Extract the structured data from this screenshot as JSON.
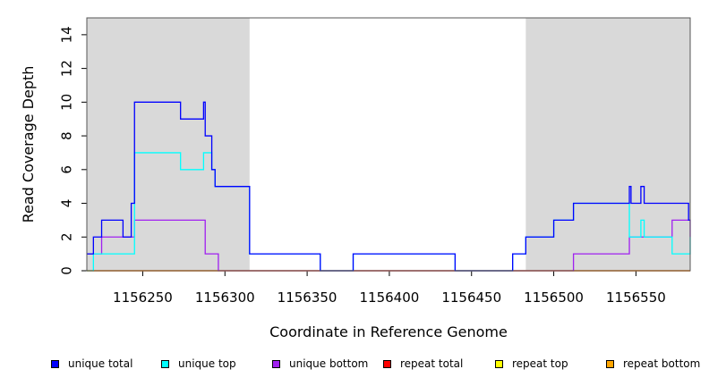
{
  "chart_data": {
    "type": "line",
    "step": true,
    "xlabel": "Coordinate in Reference Genome",
    "ylabel": "Read Coverage Depth",
    "xlim": [
      1156216,
      1156583
    ],
    "ylim": [
      0,
      15
    ],
    "x_ticks": [
      1156250,
      1156300,
      1156350,
      1156400,
      1156450,
      1156500,
      1156550
    ],
    "y_ticks": [
      0,
      2,
      4,
      6,
      8,
      10,
      12,
      14
    ],
    "shaded_regions": [
      [
        1156216,
        1156315
      ],
      [
        1156483,
        1156583
      ]
    ],
    "legend_position": "bottom",
    "series": [
      {
        "name": "repeat bottom",
        "color": "#FFA500",
        "points": [
          [
            1156216,
            0
          ],
          [
            1156583,
            0
          ]
        ]
      },
      {
        "name": "repeat top",
        "color": "#FFFF00",
        "points": [
          [
            1156216,
            0
          ],
          [
            1156583,
            0
          ]
        ]
      },
      {
        "name": "repeat total",
        "color": "#FF0000",
        "points": [
          [
            1156216,
            0
          ],
          [
            1156583,
            0
          ]
        ]
      },
      {
        "name": "unique bottom",
        "color": "#A020F0",
        "points": [
          [
            1156216,
            1
          ],
          [
            1156225,
            2
          ],
          [
            1156245,
            3
          ],
          [
            1156288,
            1
          ],
          [
            1156296,
            0
          ],
          [
            1156358,
            0
          ],
          [
            1156512,
            1
          ],
          [
            1156546,
            2
          ],
          [
            1156572,
            3
          ],
          [
            1156583,
            2
          ]
        ]
      },
      {
        "name": "unique top",
        "color": "#00FFFF",
        "points": [
          [
            1156216,
            0
          ],
          [
            1156220,
            1
          ],
          [
            1156245,
            7
          ],
          [
            1156273,
            6
          ],
          [
            1156287,
            7
          ],
          [
            1156292,
            6
          ],
          [
            1156294,
            5
          ],
          [
            1156315,
            1
          ],
          [
            1156358,
            0
          ],
          [
            1156378,
            1
          ],
          [
            1156440,
            0
          ],
          [
            1156475,
            1
          ],
          [
            1156483,
            2
          ],
          [
            1156500,
            3
          ],
          [
            1156512,
            4
          ],
          [
            1156546,
            2
          ],
          [
            1156553,
            3
          ],
          [
            1156555,
            2
          ],
          [
            1156572,
            1
          ],
          [
            1156583,
            2
          ]
        ]
      },
      {
        "name": "unique total",
        "color": "#0000FF",
        "points": [
          [
            1156216,
            1
          ],
          [
            1156220,
            2
          ],
          [
            1156225,
            3
          ],
          [
            1156238,
            2
          ],
          [
            1156243,
            4
          ],
          [
            1156245,
            10
          ],
          [
            1156273,
            9
          ],
          [
            1156287,
            10
          ],
          [
            1156288,
            8
          ],
          [
            1156292,
            6
          ],
          [
            1156294,
            5
          ],
          [
            1156315,
            1
          ],
          [
            1156358,
            0
          ],
          [
            1156378,
            1
          ],
          [
            1156440,
            0
          ],
          [
            1156475,
            1
          ],
          [
            1156483,
            2
          ],
          [
            1156500,
            3
          ],
          [
            1156512,
            4
          ],
          [
            1156546,
            5
          ],
          [
            1156547,
            4
          ],
          [
            1156553,
            5
          ],
          [
            1156555,
            4
          ],
          [
            1156582,
            3
          ]
        ]
      }
    ],
    "legend": [
      {
        "label": "unique total",
        "color": "#0000FF"
      },
      {
        "label": "unique top",
        "color": "#00FFFF"
      },
      {
        "label": "unique bottom",
        "color": "#A020F0"
      },
      {
        "label": "repeat total",
        "color": "#FF0000"
      },
      {
        "label": "repeat top",
        "color": "#FFFF00"
      },
      {
        "label": "repeat bottom",
        "color": "#FFA500"
      }
    ]
  }
}
